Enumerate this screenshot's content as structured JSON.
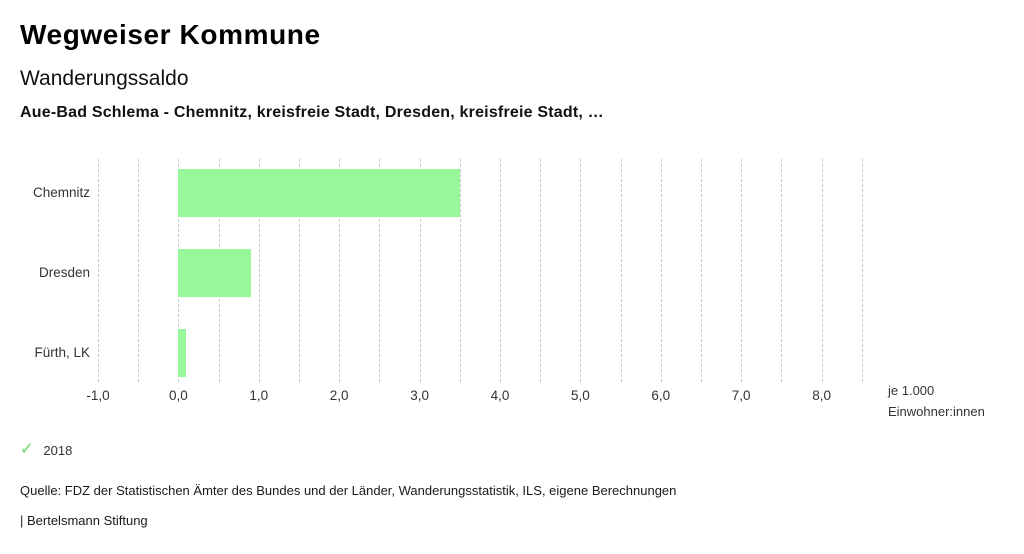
{
  "header": {
    "app_title": "Wegweiser Kommune",
    "chart_title": "Wanderungssaldo",
    "comparison_subtitle": "Aue-Bad Schlema - Chemnitz, kreisfreie Stadt, Dresden, kreisfreie Stadt, …"
  },
  "chart_data": {
    "type": "bar",
    "orientation": "horizontal",
    "title": "Wanderungssaldo",
    "subtitle": "Aue-Bad Schlema - Chemnitz, kreisfreie Stadt, Dresden, kreisfreie Stadt, …",
    "categories": [
      "Chemnitz",
      "Dresden",
      "Fürth, LK"
    ],
    "series": [
      {
        "name": "2018",
        "values": [
          3.5,
          0.9,
          0.1
        ]
      }
    ],
    "unit_label": "je 1.000 Einwohner:innen",
    "xlim": [
      -1.0,
      8.5
    ],
    "gridline_step": 0.5,
    "grid": true,
    "x_ticks": [
      -1,
      0,
      1,
      2,
      3,
      4,
      5,
      6,
      7,
      8
    ],
    "x_tick_labels": [
      "-1,0",
      "0,0",
      "1,0",
      "2,0",
      "3,0",
      "4,0",
      "5,0",
      "6,0",
      "7,0",
      "8,0"
    ],
    "legend_position": "bottom-left",
    "bar_color": "#98f798"
  },
  "axis_unit": {
    "line1": "je 1.000",
    "line2": "Einwohner:innen"
  },
  "legend": {
    "year": "2018",
    "check_icon": "✓",
    "check_color": "#8ce08c"
  },
  "footer": {
    "source": "Quelle: FDZ der Statistischen Ämter des Bundes und der Länder, Wanderungsstatistik, ILS, eigene Berechnungen",
    "brand": "| Bertelsmann Stiftung"
  },
  "colors": {
    "bar": "#98f798",
    "gridline": "#c9c9c9",
    "text_primary": "#000000",
    "text_secondary": "#333333",
    "background": "#ffffff"
  }
}
